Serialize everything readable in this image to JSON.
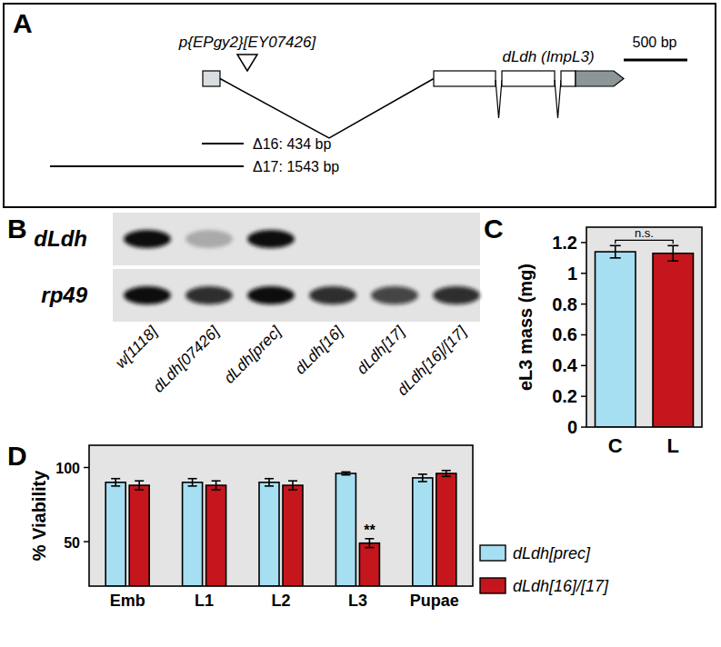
{
  "gene_diagram": {
    "panel": "A",
    "insertion": "p{EPgy2}[EY07426]",
    "gene": "dLdh (ImpL3)",
    "scale_bar": "500 bp",
    "deletions": [
      {
        "label": "Δ16: 434 bp"
      },
      {
        "label": "Δ17: 1543 bp"
      }
    ]
  },
  "blot": {
    "panel": "B",
    "lanes": [
      "w[1118]",
      "dLdh[07426]",
      "dLdh[prec]",
      "dLdh[16]",
      "dLdh[17]",
      "dLdh[16]/[17]"
    ],
    "rows": [
      {
        "label": "dLdh",
        "signal": [
          1,
          0.25,
          1,
          0,
          0,
          0
        ]
      },
      {
        "label": "rp49",
        "signal": [
          1,
          0.85,
          1,
          0.85,
          0.75,
          0.85
        ]
      }
    ]
  },
  "chart_data": [
    {
      "panel": "C",
      "type": "bar",
      "categories": [
        "C",
        "L"
      ],
      "values": [
        1.14,
        1.13
      ],
      "errors": [
        0.04,
        0.05
      ],
      "colors": [
        "#a6dff2",
        "#c4161c"
      ],
      "y_label": "eL3 mass (mg)",
      "ylim": [
        0,
        1.3
      ],
      "yticks": [
        0,
        0.2,
        0.4,
        0.6,
        0.8,
        1,
        1.2
      ],
      "annotations": [
        {
          "text": "n.s.",
          "categories": [
            0,
            1
          ]
        }
      ]
    },
    {
      "panel": "D",
      "type": "bar",
      "categories": [
        "Emb",
        "L1",
        "L2",
        "L3",
        "Pupae"
      ],
      "series": [
        {
          "name": "dLdh[prec]",
          "color": "#a6dff2",
          "values": [
            90,
            90,
            90,
            96,
            93
          ],
          "errors": [
            2.5,
            2.5,
            2.5,
            1,
            2.5
          ]
        },
        {
          "name": "dLdh[16]/[17]",
          "color": "#c4161c",
          "values": [
            88,
            88,
            88,
            49,
            96
          ],
          "errors": [
            3,
            3,
            3,
            3,
            2
          ]
        }
      ],
      "y_label": "% Viability",
      "ylim": [
        20,
        115
      ],
      "yticks": [
        50,
        100
      ],
      "legend": "right",
      "annotations": [
        {
          "text": "**",
          "series": 1,
          "category": 3
        }
      ]
    }
  ]
}
